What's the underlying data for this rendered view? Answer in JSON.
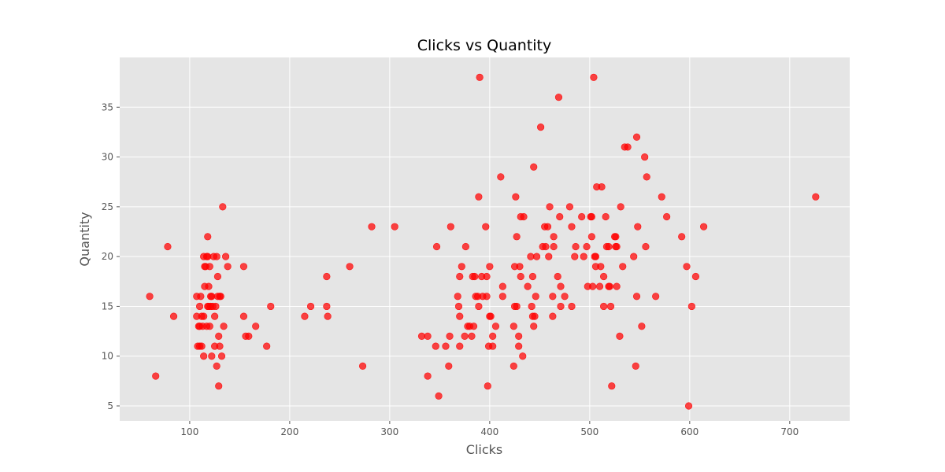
{
  "chart_data": {
    "type": "scatter",
    "title": "Clicks vs Quantity",
    "xlabel": "Clicks",
    "ylabel": "Quantity",
    "xlim": [
      30,
      760
    ],
    "ylim": [
      3.5,
      40
    ],
    "xticks": [
      100,
      200,
      300,
      400,
      500,
      600,
      700
    ],
    "yticks": [
      5,
      10,
      15,
      20,
      25,
      30,
      35
    ],
    "grid": true,
    "colors": {
      "point": "#ff0000",
      "plot_bg": "#e5e5e5",
      "grid": "#ffffff",
      "tick_text": "#555555",
      "title_text": "#000000"
    },
    "points": [
      [
        60,
        16
      ],
      [
        66,
        8
      ],
      [
        78,
        21
      ],
      [
        84,
        14
      ],
      [
        107,
        16
      ],
      [
        107,
        14
      ],
      [
        108,
        11
      ],
      [
        109,
        13
      ],
      [
        110,
        11
      ],
      [
        110,
        13
      ],
      [
        110,
        15
      ],
      [
        111,
        16
      ],
      [
        112,
        14
      ],
      [
        112,
        11
      ],
      [
        113,
        13
      ],
      [
        114,
        10
      ],
      [
        114,
        14
      ],
      [
        114,
        20
      ],
      [
        115,
        17
      ],
      [
        115,
        19
      ],
      [
        116,
        19
      ],
      [
        117,
        20
      ],
      [
        117,
        13
      ],
      [
        118,
        22
      ],
      [
        118,
        20
      ],
      [
        118,
        15
      ],
      [
        119,
        17
      ],
      [
        119,
        15
      ],
      [
        120,
        13
      ],
      [
        120,
        19
      ],
      [
        121,
        16
      ],
      [
        121,
        15
      ],
      [
        122,
        10
      ],
      [
        122,
        16
      ],
      [
        123,
        15
      ],
      [
        124,
        20
      ],
      [
        125,
        11
      ],
      [
        125,
        14
      ],
      [
        126,
        15
      ],
      [
        127,
        20
      ],
      [
        127,
        9
      ],
      [
        128,
        18
      ],
      [
        128,
        16
      ],
      [
        129,
        12
      ],
      [
        129,
        7
      ],
      [
        130,
        16
      ],
      [
        130,
        11
      ],
      [
        131,
        16
      ],
      [
        132,
        10
      ],
      [
        133,
        25
      ],
      [
        134,
        13
      ],
      [
        136,
        20
      ],
      [
        138,
        19
      ],
      [
        154,
        14
      ],
      [
        154,
        19
      ],
      [
        156,
        12
      ],
      [
        159,
        12
      ],
      [
        166,
        13
      ],
      [
        177,
        11
      ],
      [
        181,
        15
      ],
      [
        215,
        14
      ],
      [
        221,
        15
      ],
      [
        237,
        15
      ],
      [
        237,
        18
      ],
      [
        238,
        14
      ],
      [
        260,
        19
      ],
      [
        273,
        9
      ],
      [
        282,
        23
      ],
      [
        305,
        23
      ],
      [
        332,
        12
      ],
      [
        338,
        12
      ],
      [
        338,
        8
      ],
      [
        346,
        11
      ],
      [
        347,
        21
      ],
      [
        349,
        6
      ],
      [
        356,
        11
      ],
      [
        359,
        9
      ],
      [
        360,
        12
      ],
      [
        361,
        23
      ],
      [
        368,
        16
      ],
      [
        369,
        15
      ],
      [
        370,
        11
      ],
      [
        370,
        18
      ],
      [
        370,
        14
      ],
      [
        372,
        19
      ],
      [
        375,
        12
      ],
      [
        376,
        21
      ],
      [
        378,
        13
      ],
      [
        380,
        13
      ],
      [
        382,
        12
      ],
      [
        383,
        18
      ],
      [
        384,
        13
      ],
      [
        385,
        18
      ],
      [
        386,
        16
      ],
      [
        388,
        16
      ],
      [
        389,
        26
      ],
      [
        389,
        15
      ],
      [
        390,
        38
      ],
      [
        392,
        18
      ],
      [
        393,
        16
      ],
      [
        396,
        23
      ],
      [
        397,
        18
      ],
      [
        397,
        16
      ],
      [
        398,
        7
      ],
      [
        399,
        11
      ],
      [
        400,
        14
      ],
      [
        400,
        19
      ],
      [
        401,
        14
      ],
      [
        403,
        11
      ],
      [
        403,
        12
      ],
      [
        406,
        13
      ],
      [
        411,
        28
      ],
      [
        413,
        16
      ],
      [
        413,
        17
      ],
      [
        424,
        13
      ],
      [
        424,
        9
      ],
      [
        425,
        15
      ],
      [
        425,
        19
      ],
      [
        426,
        26
      ],
      [
        427,
        22
      ],
      [
        427,
        15
      ],
      [
        429,
        12
      ],
      [
        429,
        11
      ],
      [
        430,
        19
      ],
      [
        431,
        18
      ],
      [
        431,
        24
      ],
      [
        433,
        10
      ],
      [
        434,
        24
      ],
      [
        438,
        17
      ],
      [
        441,
        20
      ],
      [
        442,
        15
      ],
      [
        443,
        18
      ],
      [
        443,
        14
      ],
      [
        444,
        29
      ],
      [
        444,
        13
      ],
      [
        445,
        14
      ],
      [
        446,
        16
      ],
      [
        447,
        20
      ],
      [
        451,
        33
      ],
      [
        453,
        21
      ],
      [
        455,
        23
      ],
      [
        456,
        21
      ],
      [
        458,
        23
      ],
      [
        459,
        20
      ],
      [
        460,
        25
      ],
      [
        463,
        16
      ],
      [
        463,
        14
      ],
      [
        464,
        22
      ],
      [
        464,
        21
      ],
      [
        468,
        18
      ],
      [
        469,
        36
      ],
      [
        470,
        24
      ],
      [
        471,
        17
      ],
      [
        471,
        15
      ],
      [
        475,
        16
      ],
      [
        480,
        25
      ],
      [
        482,
        15
      ],
      [
        482,
        23
      ],
      [
        485,
        20
      ],
      [
        486,
        21
      ],
      [
        492,
        24
      ],
      [
        494,
        20
      ],
      [
        497,
        21
      ],
      [
        498,
        17
      ],
      [
        501,
        24
      ],
      [
        502,
        22
      ],
      [
        502,
        24
      ],
      [
        503,
        17
      ],
      [
        504,
        38
      ],
      [
        505,
        20
      ],
      [
        506,
        19
      ],
      [
        506,
        20
      ],
      [
        507,
        27
      ],
      [
        510,
        17
      ],
      [
        511,
        19
      ],
      [
        512,
        27
      ],
      [
        514,
        18
      ],
      [
        514,
        15
      ],
      [
        516,
        24
      ],
      [
        517,
        21
      ],
      [
        519,
        21
      ],
      [
        519,
        17
      ],
      [
        520,
        17
      ],
      [
        521,
        15
      ],
      [
        522,
        7
      ],
      [
        525,
        22
      ],
      [
        526,
        22
      ],
      [
        526,
        21
      ],
      [
        527,
        21
      ],
      [
        527,
        17
      ],
      [
        530,
        12
      ],
      [
        531,
        25
      ],
      [
        533,
        19
      ],
      [
        535,
        31
      ],
      [
        538,
        31
      ],
      [
        544,
        20
      ],
      [
        546,
        9
      ],
      [
        547,
        32
      ],
      [
        547,
        16
      ],
      [
        548,
        23
      ],
      [
        552,
        13
      ],
      [
        555,
        30
      ],
      [
        556,
        21
      ],
      [
        557,
        28
      ],
      [
        566,
        16
      ],
      [
        572,
        26
      ],
      [
        577,
        24
      ],
      [
        592,
        22
      ],
      [
        597,
        19
      ],
      [
        599,
        5
      ],
      [
        602,
        15
      ],
      [
        606,
        18
      ],
      [
        614,
        23
      ],
      [
        726,
        26
      ]
    ]
  }
}
